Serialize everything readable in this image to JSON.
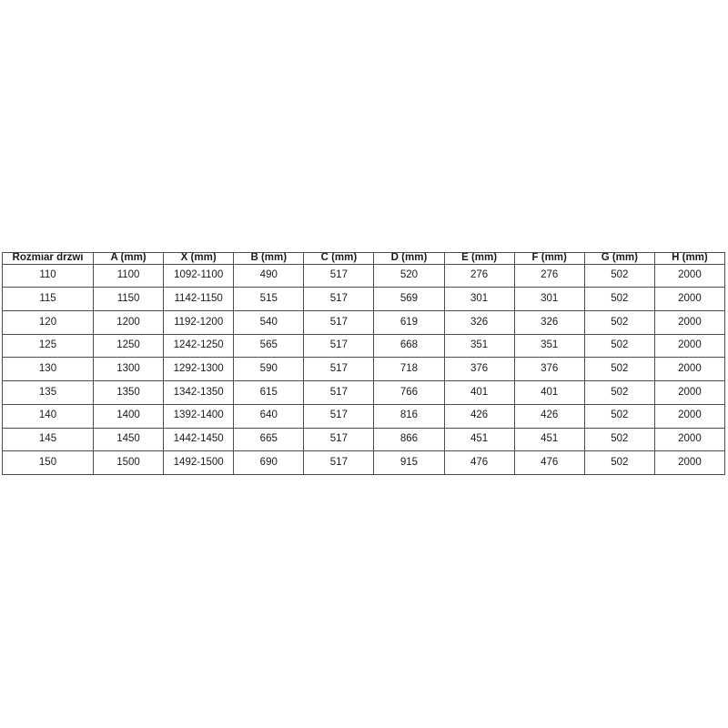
{
  "page": {
    "background": "#ffffff"
  },
  "table": {
    "border_color": "#4d4d4d",
    "text_color": "#1a1a1a",
    "headers": [
      "Rozmiar drzwi",
      "A (mm)",
      "X (mm)",
      "B (mm)",
      "C (mm)",
      "D (mm)",
      "E (mm)",
      "F (mm)",
      "G (mm)",
      "H (mm)"
    ],
    "rows": [
      [
        "110",
        "1100",
        "1092-1100",
        "490",
        "517",
        "520",
        "276",
        "276",
        "502",
        "2000"
      ],
      [
        "115",
        "1150",
        "1142-1150",
        "515",
        "517",
        "569",
        "301",
        "301",
        "502",
        "2000"
      ],
      [
        "120",
        "1200",
        "1192-1200",
        "540",
        "517",
        "619",
        "326",
        "326",
        "502",
        "2000"
      ],
      [
        "125",
        "1250",
        "1242-1250",
        "565",
        "517",
        "668",
        "351",
        "351",
        "502",
        "2000"
      ],
      [
        "130",
        "1300",
        "1292-1300",
        "590",
        "517",
        "718",
        "376",
        "376",
        "502",
        "2000"
      ],
      [
        "135",
        "1350",
        "1342-1350",
        "615",
        "517",
        "766",
        "401",
        "401",
        "502",
        "2000"
      ],
      [
        "140",
        "1400",
        "1392-1400",
        "640",
        "517",
        "816",
        "426",
        "426",
        "502",
        "2000"
      ],
      [
        "145",
        "1450",
        "1442-1450",
        "665",
        "517",
        "866",
        "451",
        "451",
        "502",
        "2000"
      ],
      [
        "150",
        "1500",
        "1492-1500",
        "690",
        "517",
        "915",
        "476",
        "476",
        "502",
        "2000"
      ]
    ]
  }
}
